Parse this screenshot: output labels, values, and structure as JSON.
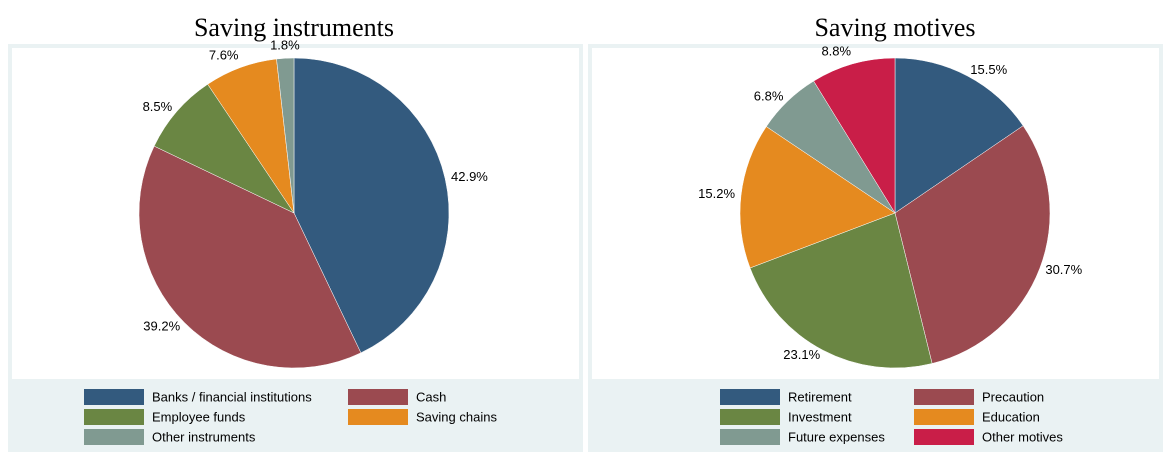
{
  "chart_data": [
    {
      "type": "pie",
      "title": "Saving instruments",
      "categories": [
        "Banks / financial institutions",
        "Cash",
        "Employee funds",
        "Saving chains",
        "Other instruments"
      ],
      "values": [
        42.9,
        39.2,
        8.5,
        7.6,
        1.8
      ],
      "value_labels": [
        "42.9%",
        "39.2%",
        "8.5%",
        "7.6%",
        "1.8%"
      ],
      "colors": [
        "#335a7e",
        "#9b4a50",
        "#6a8643",
        "#e58a1f",
        "#809a91"
      ]
    },
    {
      "type": "pie",
      "title": "Saving motives",
      "categories": [
        "Retirement",
        "Precaution",
        "Investment",
        "Education",
        "Future expenses",
        "Other motives"
      ],
      "values": [
        15.5,
        30.7,
        23.1,
        15.2,
        6.8,
        8.8
      ],
      "value_labels": [
        "15.5%",
        "30.7%",
        "23.1%",
        "15.2%",
        "6.8%",
        "8.8%"
      ],
      "colors": [
        "#335a7e",
        "#9b4a50",
        "#6a8643",
        "#e58a1f",
        "#809a91",
        "#c91e48"
      ]
    }
  ]
}
